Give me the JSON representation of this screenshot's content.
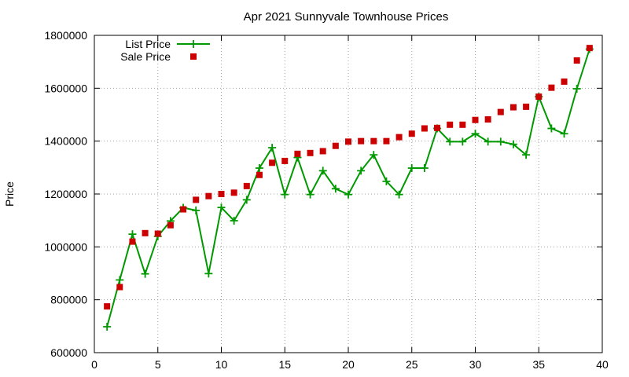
{
  "chart_data": {
    "type": "line",
    "title": "Apr 2021 Sunnyvale Townhouse Prices",
    "xlabel": "",
    "ylabel": "Price",
    "xlim": [
      0,
      40
    ],
    "ylim": [
      600000,
      1800000
    ],
    "xticks": [
      0,
      5,
      10,
      15,
      20,
      25,
      30,
      35,
      40
    ],
    "yticks": [
      600000,
      800000,
      1000000,
      1200000,
      1400000,
      1600000,
      1800000
    ],
    "grid": true,
    "legend": "top-left",
    "x": [
      1,
      2,
      3,
      4,
      5,
      6,
      7,
      8,
      9,
      10,
      11,
      12,
      13,
      14,
      15,
      16,
      17,
      18,
      19,
      20,
      21,
      22,
      23,
      24,
      25,
      26,
      27,
      28,
      29,
      30,
      31,
      32,
      33,
      34,
      35,
      36,
      37,
      38,
      39
    ],
    "series": [
      {
        "name": "List Price",
        "style": "linespoints",
        "marker": "plus",
        "color": "#009900",
        "values": [
          698000,
          875000,
          1048000,
          898000,
          1040000,
          1098000,
          1148000,
          1138000,
          899000,
          1149000,
          1099000,
          1178000,
          1298000,
          1375000,
          1198000,
          1338000,
          1198000,
          1288000,
          1220000,
          1198000,
          1288000,
          1348000,
          1248000,
          1198000,
          1298000,
          1298000,
          1448000,
          1398000,
          1398000,
          1428000,
          1398000,
          1398000,
          1388000,
          1348000,
          1568000,
          1448000,
          1428000,
          1598000,
          1748000
        ]
      },
      {
        "name": "Sale Price",
        "style": "points",
        "marker": "square",
        "color": "#cc0000",
        "values": [
          775000,
          848000,
          1020000,
          1052000,
          1050000,
          1082000,
          1142000,
          1178000,
          1192000,
          1200000,
          1205000,
          1230000,
          1272000,
          1318000,
          1325000,
          1352000,
          1355000,
          1362000,
          1382000,
          1398000,
          1400000,
          1400000,
          1400000,
          1415000,
          1428000,
          1448000,
          1450000,
          1462000,
          1462000,
          1480000,
          1482000,
          1510000,
          1528000,
          1530000,
          1568000,
          1602000,
          1625000,
          1705000,
          1752000
        ]
      }
    ]
  }
}
